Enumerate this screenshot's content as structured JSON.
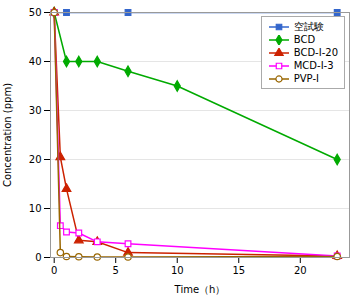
{
  "chart_data": {
    "type": "line",
    "xlabel": "Time（h）",
    "ylabel": "Concentration (ppm)",
    "xlim": [
      -0.3,
      24
    ],
    "ylim": [
      0,
      50
    ],
    "xticks": [
      0,
      5,
      10,
      15,
      20
    ],
    "yticks": [
      0,
      10,
      20,
      30,
      40,
      50
    ],
    "grid": true,
    "legend": "upper right",
    "series": [
      {
        "name": "空試験",
        "color": "#3366CC",
        "marker": "square",
        "x": [
          0,
          1,
          6,
          23
        ],
        "values": [
          50,
          50,
          50,
          50
        ]
      },
      {
        "name": "BCD",
        "color": "#00AA00",
        "marker": "diamond",
        "x": [
          0,
          1,
          2,
          3.5,
          6,
          10,
          23
        ],
        "values": [
          50,
          40,
          40,
          40,
          38,
          35,
          20
        ]
      },
      {
        "name": "BCD-I-20",
        "color": "#CC2200",
        "marker": "triangle-up",
        "x": [
          0,
          0.5,
          1,
          2,
          3.5,
          6,
          23
        ],
        "values": [
          50,
          20.5,
          14,
          3.5,
          3.2,
          1.0,
          0.3
        ]
      },
      {
        "name": "MCD-I-3",
        "color": "#FF00FF",
        "marker": "square-open",
        "x": [
          0,
          0.5,
          1,
          2,
          3.5,
          6,
          23
        ],
        "values": [
          50,
          6.5,
          5.2,
          5.0,
          3.2,
          2.8,
          0.3
        ]
      },
      {
        "name": "PVP-I",
        "color": "#996600",
        "marker": "circle-open",
        "x": [
          0,
          0.5,
          1,
          2,
          3.5,
          6,
          23
        ],
        "values": [
          50,
          1.0,
          0.2,
          0.15,
          0.1,
          0.1,
          0.2
        ]
      }
    ]
  }
}
